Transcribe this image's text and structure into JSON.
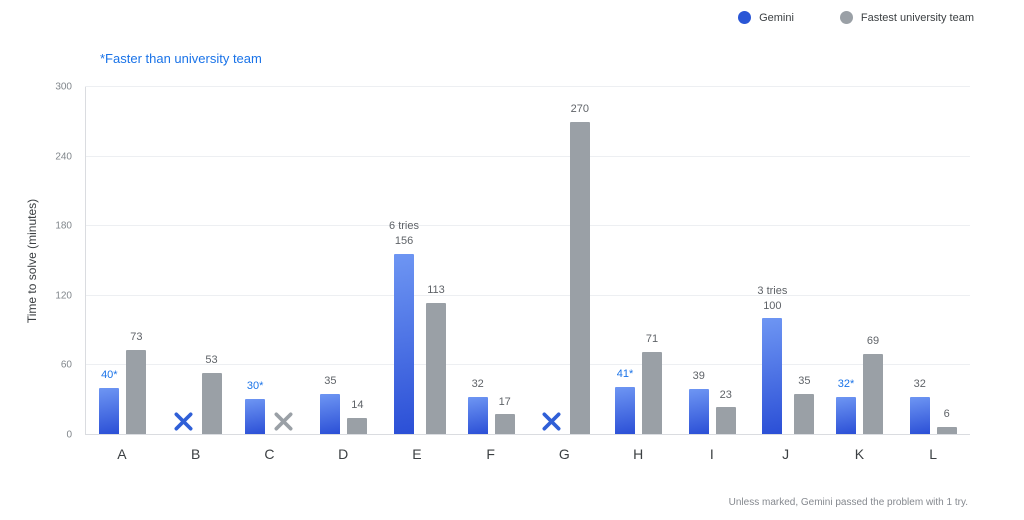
{
  "legend": {
    "items": [
      {
        "label": "Gemini",
        "color": "#2a56d6"
      },
      {
        "label": "Fastest university team",
        "color": "#9aa0a6"
      }
    ]
  },
  "annotation": "*Faster than university team",
  "footnote": "Unless marked, Gemini passed the problem with 1 try.",
  "colors": {
    "gemini_bar_top": "#6e96f3",
    "gemini_bar_bottom": "#2b4fd6",
    "team_bar": "#9aa0a6",
    "gemini_x": "#2f5fd7",
    "team_x": "#9aa0a6",
    "starred_label": "#1a73e8",
    "value_label": "#5f6368"
  },
  "chart_data": {
    "type": "bar",
    "title": "",
    "xlabel": "",
    "ylabel": "Time to solve (minutes)",
    "ylim": [
      0,
      300
    ],
    "yticks": [
      0,
      60,
      120,
      180,
      240,
      300
    ],
    "grid": true,
    "legend_position": "top-right",
    "categories": [
      "A",
      "B",
      "C",
      "D",
      "E",
      "F",
      "G",
      "H",
      "I",
      "J",
      "K",
      "L"
    ],
    "series": [
      {
        "name": "Gemini",
        "values": [
          40,
          null,
          30,
          35,
          156,
          32,
          null,
          41,
          39,
          100,
          32,
          32
        ]
      },
      {
        "name": "Fastest university team",
        "values": [
          73,
          53,
          null,
          14,
          113,
          17,
          270,
          71,
          23,
          35,
          69,
          6
        ]
      }
    ],
    "failed_marker": "✕",
    "groups": [
      {
        "category": "A",
        "gemini": 40,
        "gemini_label": "40*",
        "team": 73
      },
      {
        "category": "B",
        "gemini": null,
        "team": 53
      },
      {
        "category": "C",
        "gemini": 30,
        "gemini_label": "30*",
        "team": null
      },
      {
        "category": "D",
        "gemini": 35,
        "team": 14
      },
      {
        "category": "E",
        "gemini": 156,
        "gemini_note": "6 tries",
        "team": 113
      },
      {
        "category": "F",
        "gemini": 32,
        "team": 17
      },
      {
        "category": "G",
        "gemini": null,
        "team": 270
      },
      {
        "category": "H",
        "gemini": 41,
        "gemini_label": "41*",
        "team": 71
      },
      {
        "category": "I",
        "gemini": 39,
        "team": 23
      },
      {
        "category": "J",
        "gemini": 100,
        "gemini_note": "3 tries",
        "team": 35
      },
      {
        "category": "K",
        "gemini": 32,
        "gemini_label": "32*",
        "team": 69
      },
      {
        "category": "L",
        "gemini": 32,
        "team": 6
      }
    ]
  }
}
